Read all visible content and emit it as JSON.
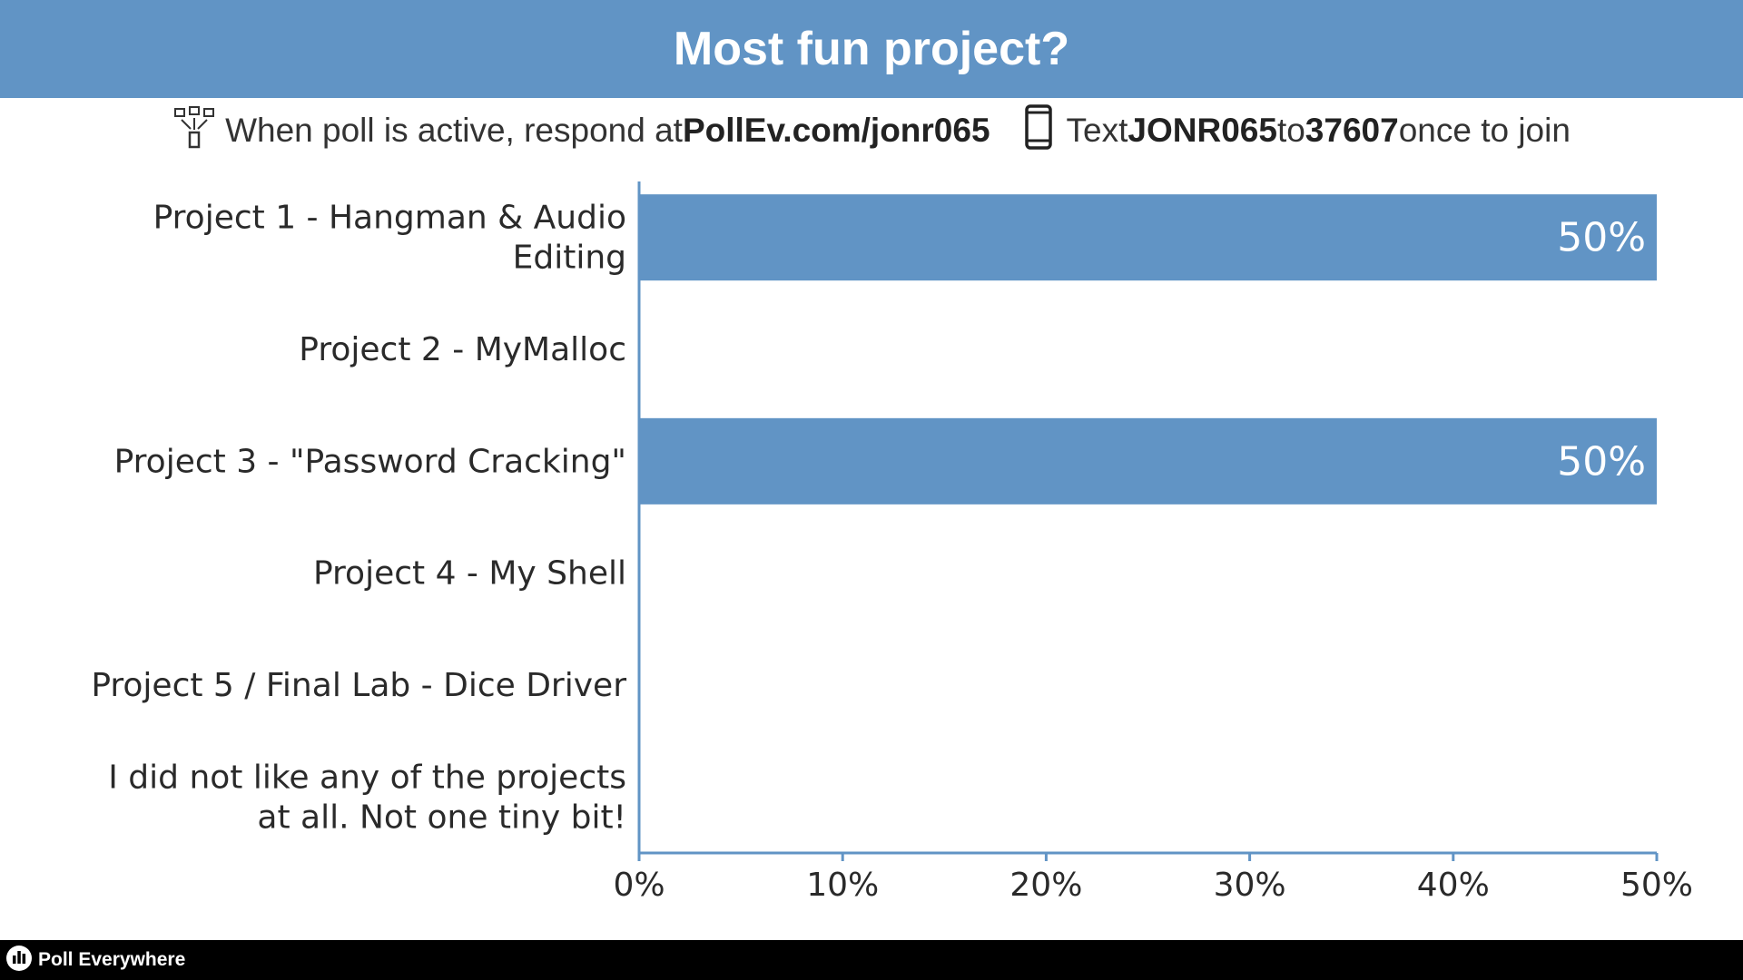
{
  "header": {
    "title": "Most fun project?"
  },
  "instructions": {
    "web_prefix": "When poll is active, respond at ",
    "web_url": "PollEv.com/jonr065",
    "text_prefix": "Text ",
    "text_code": "JONR065",
    "text_to": " to ",
    "text_number": "37607",
    "text_suffix": " once to join"
  },
  "footer": {
    "brand": "Poll Everywhere"
  },
  "colors": {
    "accent": "#6194c5",
    "footer_bg": "#000000",
    "axis": "#6194c5"
  },
  "icons": [
    "devices-icon",
    "phone-icon",
    "poll-everywhere-logo-icon"
  ],
  "chart_data": {
    "type": "bar",
    "orientation": "horizontal",
    "title": "Most fun project?",
    "categories": [
      [
        "Project 1 - Hangman & Audio",
        "Editing"
      ],
      [
        "Project 2 - MyMalloc"
      ],
      [
        "Project 3 - \"Password Cracking\""
      ],
      [
        "Project 4 - My Shell"
      ],
      [
        "Project 5 / Final Lab - Dice Driver"
      ],
      [
        "I did not like any of the projects",
        "at all. Not one tiny bit!"
      ]
    ],
    "values": [
      50,
      0,
      50,
      0,
      0,
      0
    ],
    "value_labels": [
      "50%",
      "",
      "50%",
      "",
      "",
      ""
    ],
    "xlim": [
      0,
      50
    ],
    "xticks": [
      0,
      10,
      20,
      30,
      40,
      50
    ],
    "xtick_labels": [
      "0%",
      "10%",
      "20%",
      "30%",
      "40%",
      "50%"
    ],
    "grid": false,
    "color": "#6194c5"
  }
}
